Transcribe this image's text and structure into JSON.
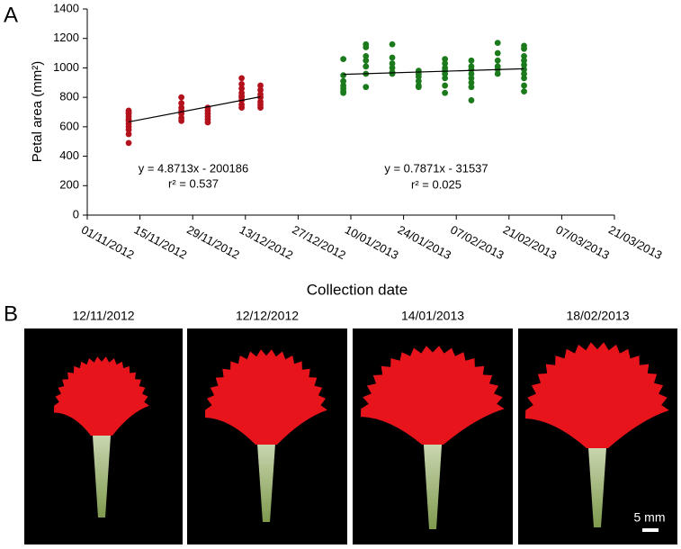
{
  "panel_labels": [
    "A",
    "B"
  ],
  "chart_data": {
    "type": "scatter",
    "ylabel": "Petal area (mm²)",
    "xlabel": "Collection date",
    "xlim": [
      "01/11/2012",
      "21/03/2013"
    ],
    "xticks": [
      "01/11/2012",
      "15/11/2012",
      "29/11/2012",
      "13/12/2012",
      "27/12/2012",
      "10/01/2013",
      "24/01/2013",
      "07/02/2013",
      "21/02/2013",
      "07/03/2013",
      "21/03/2013"
    ],
    "ylim": [
      0,
      1400
    ],
    "yticks": [
      0,
      200,
      400,
      600,
      800,
      1000,
      1200,
      1400
    ],
    "series": [
      {
        "color": "#b3121d",
        "x": [
          "12/11/2012",
          "12/11/2012",
          "12/11/2012",
          "12/11/2012",
          "12/11/2012",
          "12/11/2012",
          "12/11/2012",
          "12/11/2012",
          "12/11/2012",
          "12/11/2012",
          "12/11/2012",
          "26/11/2012",
          "26/11/2012",
          "26/11/2012",
          "26/11/2012",
          "26/11/2012",
          "26/11/2012",
          "26/11/2012",
          "03/12/2012",
          "03/12/2012",
          "03/12/2012",
          "03/12/2012",
          "03/12/2012",
          "03/12/2012",
          "12/12/2012",
          "12/12/2012",
          "12/12/2012",
          "12/12/2012",
          "12/12/2012",
          "12/12/2012",
          "12/12/2012",
          "12/12/2012",
          "12/12/2012",
          "17/12/2012",
          "17/12/2012",
          "17/12/2012",
          "17/12/2012",
          "17/12/2012",
          "17/12/2012",
          "17/12/2012"
        ],
        "values": [
          710,
          690,
          670,
          650,
          620,
          600,
          580,
          550,
          490,
          640,
          700,
          800,
          760,
          730,
          710,
          690,
          660,
          640,
          730,
          710,
          690,
          670,
          650,
          630,
          930,
          890,
          860,
          830,
          800,
          780,
          750,
          730,
          810,
          880,
          850,
          820,
          800,
          770,
          750,
          730
        ]
      },
      {
        "color": "#1b7a1b",
        "x": [
          "08/01/2013",
          "08/01/2013",
          "08/01/2013",
          "08/01/2013",
          "08/01/2013",
          "08/01/2013",
          "08/01/2013",
          "14/01/2013",
          "14/01/2013",
          "14/01/2013",
          "14/01/2013",
          "14/01/2013",
          "14/01/2013",
          "14/01/2013",
          "21/01/2013",
          "21/01/2013",
          "21/01/2013",
          "21/01/2013",
          "21/01/2013",
          "21/01/2013",
          "28/01/2013",
          "28/01/2013",
          "28/01/2013",
          "28/01/2013",
          "28/01/2013",
          "28/01/2013",
          "04/02/2013",
          "04/02/2013",
          "04/02/2013",
          "04/02/2013",
          "04/02/2013",
          "04/02/2013",
          "04/02/2013",
          "04/02/2013",
          "11/02/2013",
          "11/02/2013",
          "11/02/2013",
          "11/02/2013",
          "11/02/2013",
          "11/02/2013",
          "11/02/2013",
          "11/02/2013",
          "18/02/2013",
          "18/02/2013",
          "18/02/2013",
          "18/02/2013",
          "18/02/2013",
          "18/02/2013",
          "25/02/2013",
          "25/02/2013",
          "25/02/2013",
          "25/02/2013",
          "25/02/2013",
          "25/02/2013",
          "25/02/2013",
          "25/02/2013",
          "25/02/2013",
          "25/02/2013"
        ],
        "values": [
          1060,
          950,
          910,
          880,
          860,
          840,
          830,
          1160,
          1140,
          1080,
          1050,
          1010,
          960,
          870,
          1160,
          1070,
          1030,
          1000,
          970,
          960,
          980,
          960,
          940,
          910,
          880,
          870,
          1060,
          1030,
          1000,
          980,
          960,
          930,
          880,
          830,
          1050,
          1010,
          990,
          960,
          930,
          900,
          870,
          780,
          1170,
          1100,
          1050,
          1010,
          990,
          960,
          1150,
          1130,
          1080,
          1050,
          1020,
          990,
          960,
          930,
          880,
          840
        ]
      }
    ],
    "trendlines": [
      {
        "x": [
          "12/11/2012",
          "17/12/2012"
        ],
        "values": [
          633,
          804
        ]
      },
      {
        "x": [
          "08/01/2013",
          "25/02/2013"
        ],
        "values": [
          956,
          994
        ]
      }
    ],
    "annotations": [
      "y = 4.8713x - 200186",
      "r² = 0.537",
      "y = 0.7871x - 31537",
      "r² = 0.025"
    ]
  },
  "photos": {
    "captions": [
      "12/11/2012",
      "12/12/2012",
      "14/01/2013",
      "18/02/2013"
    ],
    "scale_bar": "5 mm"
  }
}
